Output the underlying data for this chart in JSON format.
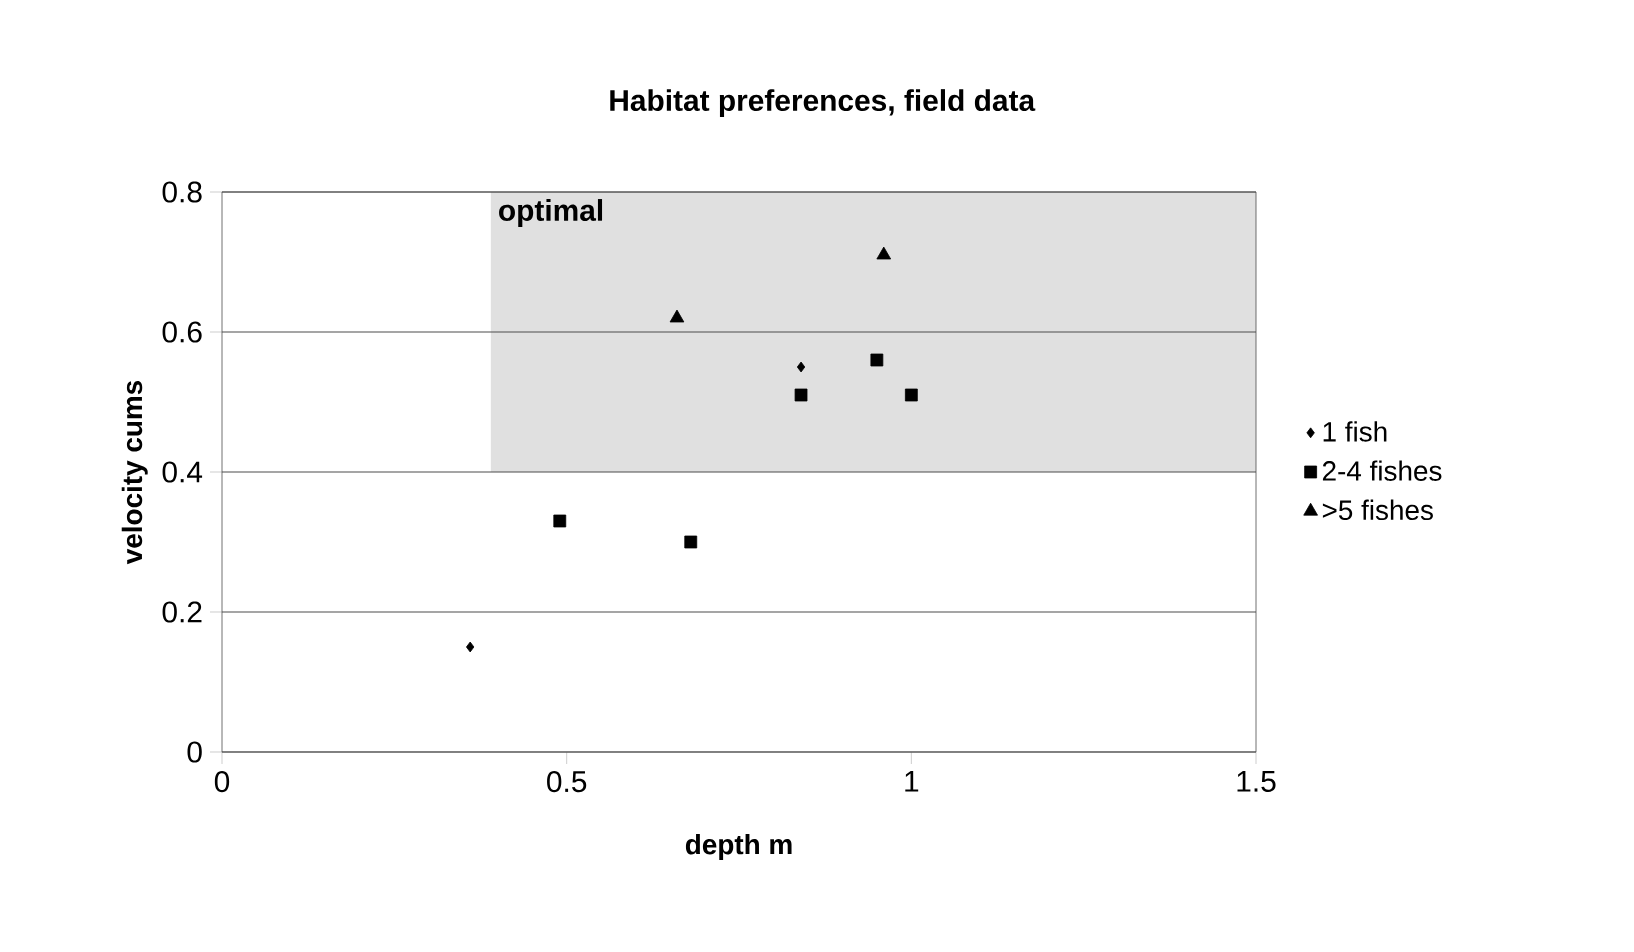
{
  "chart_data": {
    "type": "scatter",
    "title": "Habitat preferences, field data",
    "xlabel": "depth m",
    "ylabel": "velocity cums",
    "xlim": [
      0,
      1.5
    ],
    "xticks": [
      0,
      0.5,
      1,
      1.5
    ],
    "ylim": [
      0,
      0.8
    ],
    "yticks": [
      0,
      0.2,
      0.4,
      0.6,
      0.8
    ],
    "grid": "y",
    "legend": "right",
    "bands": [
      {
        "axis": "x",
        "from": 0.39,
        "to": 1.5,
        "label": "optimal",
        "color": "#e0e0e0"
      }
    ],
    "series": [
      {
        "name": "1 fish",
        "color": "#000000",
        "marker": "diamond",
        "x": [
          0.36,
          0.84
        ],
        "values": [
          0.15,
          0.55
        ]
      },
      {
        "name": "2-4 fishes",
        "color": "#000000",
        "marker": "square",
        "x": [
          0.49,
          0.68,
          0.84,
          0.95,
          1.0
        ],
        "values": [
          0.33,
          0.3,
          0.51,
          0.56,
          0.51
        ]
      },
      {
        "name": ">5 fishes",
        "color": "#000000",
        "marker": "triangle",
        "x": [
          0.66,
          0.96
        ],
        "values": [
          0.62,
          0.71
        ]
      }
    ]
  }
}
